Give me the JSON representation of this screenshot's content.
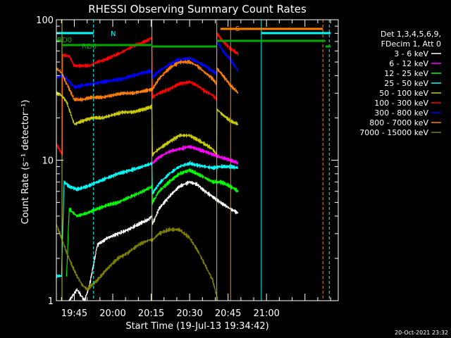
{
  "chart_data": {
    "type": "line",
    "title": "RHESSI Observing Summary Count Rates",
    "xlabel": "Start Time (19-Jul-13 19:34:42)",
    "ylabel": "Count Rate (s⁻¹ detector⁻¹)",
    "yscale": "log",
    "ylim": [
      1,
      100
    ],
    "xlim_minutes_after_19:30": [
      8,
      118
    ],
    "x_ticks": [
      {
        "label": "19:45",
        "minute": 15
      },
      {
        "label": "20:00",
        "minute": 30
      },
      {
        "label": "20:15",
        "minute": 45
      },
      {
        "label": "20:30",
        "minute": 60
      },
      {
        "label": "20:45",
        "minute": 75
      },
      {
        "label": "21:00",
        "minute": 90
      }
    ],
    "y_ticks": [
      {
        "label": "1",
        "value": 1
      },
      {
        "label": "10",
        "value": 10
      },
      {
        "label": "100",
        "value": 100
      }
    ],
    "legend": {
      "position": "right",
      "header": [
        "Det 1,3,4,5,6,9,",
        "FDecim 1, Att 0"
      ],
      "entries": [
        {
          "label": "3 - 6 keV",
          "color": "#ffffff"
        },
        {
          "label": "6 - 12 keV",
          "color": "#ff00ff"
        },
        {
          "label": "12 - 25 keV",
          "color": "#00ff00"
        },
        {
          "label": "25 - 50 keV",
          "color": "#00ffff"
        },
        {
          "label": "50 - 100 keV",
          "color": "#cccc00"
        },
        {
          "label": "100 - 300 keV",
          "color": "#ff0000"
        },
        {
          "label": "300 - 800 keV",
          "color": "#0000ff"
        },
        {
          "label": "800 - 7000 keV",
          "color": "#ff8000"
        },
        {
          "label": "7000 - 15000 keV",
          "color": "#808000"
        }
      ]
    },
    "flags": [
      {
        "label": "RD0",
        "color": "#00aa00"
      },
      {
        "label": "RD6",
        "color": "#00aa00"
      },
      {
        "label": "N",
        "color": "#00ffff"
      },
      {
        "label": "S",
        "color": "#ff8000"
      }
    ],
    "series": [
      {
        "name": "100 - 300 keV",
        "color": "#ff0000",
        "points": [
          [
            8,
            13
          ],
          [
            10.3,
            11
          ],
          [
            10.5,
            56
          ],
          [
            13,
            55
          ],
          [
            15,
            47
          ],
          [
            18,
            47
          ],
          [
            21,
            47
          ],
          [
            24,
            50
          ],
          [
            27,
            52
          ],
          [
            30,
            55
          ],
          [
            33,
            58
          ],
          [
            36,
            62
          ],
          [
            38,
            65
          ],
          [
            41,
            68
          ],
          [
            44,
            72
          ],
          [
            45.3,
            75
          ],
          [
            45.5,
            28
          ],
          [
            48,
            30
          ],
          [
            52,
            32
          ],
          [
            56,
            35
          ],
          [
            60,
            36
          ],
          [
            63,
            34
          ],
          [
            66,
            31
          ],
          [
            69,
            29
          ],
          [
            70.5,
            27
          ],
          [
            70.7,
            80
          ],
          [
            73,
            70
          ],
          [
            76,
            62
          ],
          [
            79,
            57
          ]
        ]
      },
      {
        "name": "300 - 800 keV",
        "color": "#0000ff",
        "points": [
          [
            8,
            39
          ],
          [
            10,
            40
          ],
          [
            12,
            38
          ],
          [
            15,
            33
          ],
          [
            18,
            34
          ],
          [
            22,
            35
          ],
          [
            26,
            36
          ],
          [
            30,
            37
          ],
          [
            34,
            38
          ],
          [
            38,
            40
          ],
          [
            42,
            42
          ],
          [
            45.3,
            43
          ],
          [
            45.5,
            39
          ],
          [
            48,
            43
          ],
          [
            52,
            48
          ],
          [
            56,
            52
          ],
          [
            60,
            53
          ],
          [
            63,
            50
          ],
          [
            66,
            47
          ],
          [
            69,
            43
          ],
          [
            70.5,
            41
          ],
          [
            70.7,
            70
          ],
          [
            73,
            60
          ],
          [
            76,
            52
          ],
          [
            79,
            43
          ]
        ]
      },
      {
        "name": "800 - 7000 keV",
        "color": "#ff8000",
        "points": [
          [
            8,
            45
          ],
          [
            10,
            42
          ],
          [
            12,
            35
          ],
          [
            15,
            27
          ],
          [
            18,
            27
          ],
          [
            22,
            28
          ],
          [
            26,
            28
          ],
          [
            30,
            29
          ],
          [
            34,
            30
          ],
          [
            38,
            30
          ],
          [
            42,
            31
          ],
          [
            45.3,
            32
          ],
          [
            45.5,
            32
          ],
          [
            48,
            38
          ],
          [
            52,
            45
          ],
          [
            56,
            50
          ],
          [
            60,
            50
          ],
          [
            63,
            47
          ],
          [
            66,
            42
          ],
          [
            69,
            38
          ],
          [
            70.5,
            35
          ],
          [
            70.7,
            45
          ],
          [
            73,
            40
          ],
          [
            76,
            34
          ],
          [
            79,
            30
          ]
        ]
      },
      {
        "name": "50 - 100 keV",
        "color": "#cccc00",
        "points": [
          [
            8,
            30
          ],
          [
            10,
            29
          ],
          [
            12,
            26
          ],
          [
            15,
            18
          ],
          [
            18,
            19
          ],
          [
            22,
            20
          ],
          [
            26,
            20
          ],
          [
            30,
            21
          ],
          [
            34,
            22
          ],
          [
            38,
            22
          ],
          [
            42,
            23
          ],
          [
            45.3,
            24
          ],
          [
            45.5,
            11
          ],
          [
            48,
            12
          ],
          [
            52,
            13.5
          ],
          [
            56,
            15
          ],
          [
            60,
            15
          ],
          [
            63,
            14
          ],
          [
            66,
            13
          ],
          [
            69,
            12
          ],
          [
            70.5,
            11
          ],
          [
            70.7,
            23
          ],
          [
            73,
            21
          ],
          [
            76,
            19
          ],
          [
            79,
            18
          ]
        ]
      },
      {
        "name": "6 - 12 keV",
        "color": "#ff00ff",
        "points": [
          [
            45.5,
            9.5
          ],
          [
            48,
            10.5
          ],
          [
            52,
            11.5
          ],
          [
            56,
            12
          ],
          [
            60,
            12.5
          ],
          [
            63,
            12
          ],
          [
            66,
            11.5
          ],
          [
            69,
            11
          ],
          [
            72,
            10.5
          ],
          [
            76,
            10
          ],
          [
            79,
            9.5
          ]
        ]
      },
      {
        "name": "25 - 50 keV",
        "color": "#00ffff",
        "points": [
          [
            8,
            1.5
          ],
          [
            10,
            1.5
          ],
          [
            11,
            7
          ],
          [
            13,
            6.5
          ],
          [
            16,
            6.2
          ],
          [
            20,
            6.5
          ],
          [
            24,
            7
          ],
          [
            28,
            7.5
          ],
          [
            32,
            8
          ],
          [
            36,
            8.4
          ],
          [
            40,
            8.8
          ],
          [
            44,
            9.3
          ],
          [
            45.3,
            9.5
          ],
          [
            45.5,
            5.8
          ],
          [
            48,
            6.8
          ],
          [
            52,
            8
          ],
          [
            56,
            9
          ],
          [
            60,
            9.5
          ],
          [
            63,
            9.2
          ],
          [
            66,
            9
          ],
          [
            69,
            8.8
          ],
          [
            72,
            9
          ],
          [
            76,
            9
          ],
          [
            79,
            8.8
          ]
        ]
      },
      {
        "name": "12 - 25 keV",
        "color": "#00ff00",
        "points": [
          [
            12,
            1.5
          ],
          [
            13,
            4.5
          ],
          [
            16,
            4
          ],
          [
            20,
            4.2
          ],
          [
            24,
            4.5
          ],
          [
            28,
            4.8
          ],
          [
            32,
            5
          ],
          [
            36,
            5.4
          ],
          [
            40,
            5.8
          ],
          [
            44,
            6.3
          ],
          [
            45.3,
            6.5
          ],
          [
            45.5,
            5
          ],
          [
            48,
            6
          ],
          [
            52,
            7
          ],
          [
            56,
            8
          ],
          [
            60,
            8.5
          ],
          [
            63,
            8
          ],
          [
            66,
            7.5
          ],
          [
            69,
            7
          ],
          [
            72,
            7
          ],
          [
            76,
            6.5
          ],
          [
            79,
            6
          ]
        ]
      },
      {
        "name": "3 - 6 keV",
        "color": "#ffffff",
        "points": [
          [
            13,
            1
          ],
          [
            16,
            1.2
          ],
          [
            19,
            1
          ],
          [
            21,
            1.3
          ],
          [
            24,
            2.5
          ],
          [
            28,
            2.8
          ],
          [
            32,
            3
          ],
          [
            36,
            3.2
          ],
          [
            40,
            3.5
          ],
          [
            44,
            3.8
          ],
          [
            45.3,
            4
          ],
          [
            45.5,
            3.5
          ],
          [
            48,
            4.5
          ],
          [
            52,
            5.5
          ],
          [
            56,
            6.5
          ],
          [
            60,
            7
          ],
          [
            63,
            6.7
          ],
          [
            66,
            6
          ],
          [
            69,
            5.5
          ],
          [
            72,
            5
          ],
          [
            76,
            4.5
          ],
          [
            79,
            4.2
          ]
        ]
      },
      {
        "name": "7000 - 15000 keV",
        "color": "#808000",
        "points": [
          [
            8,
            3.5
          ],
          [
            10,
            2.8
          ],
          [
            12,
            2.2
          ],
          [
            14,
            1.8
          ],
          [
            16,
            1.5
          ],
          [
            18,
            1.3
          ],
          [
            20,
            1.2
          ],
          [
            24,
            1.4
          ],
          [
            28,
            1.7
          ],
          [
            32,
            2
          ],
          [
            36,
            2.2
          ],
          [
            40,
            2.5
          ],
          [
            44,
            2.7
          ],
          [
            45.5,
            2.7
          ],
          [
            48,
            3
          ],
          [
            52,
            3.2
          ],
          [
            56,
            3.2
          ],
          [
            60,
            2.8
          ],
          [
            63,
            2.3
          ],
          [
            66,
            1.8
          ],
          [
            69,
            1.4
          ],
          [
            71,
            1
          ]
        ]
      }
    ]
  },
  "footer": {
    "timestamp": "20-Oct-2021 23:32"
  }
}
